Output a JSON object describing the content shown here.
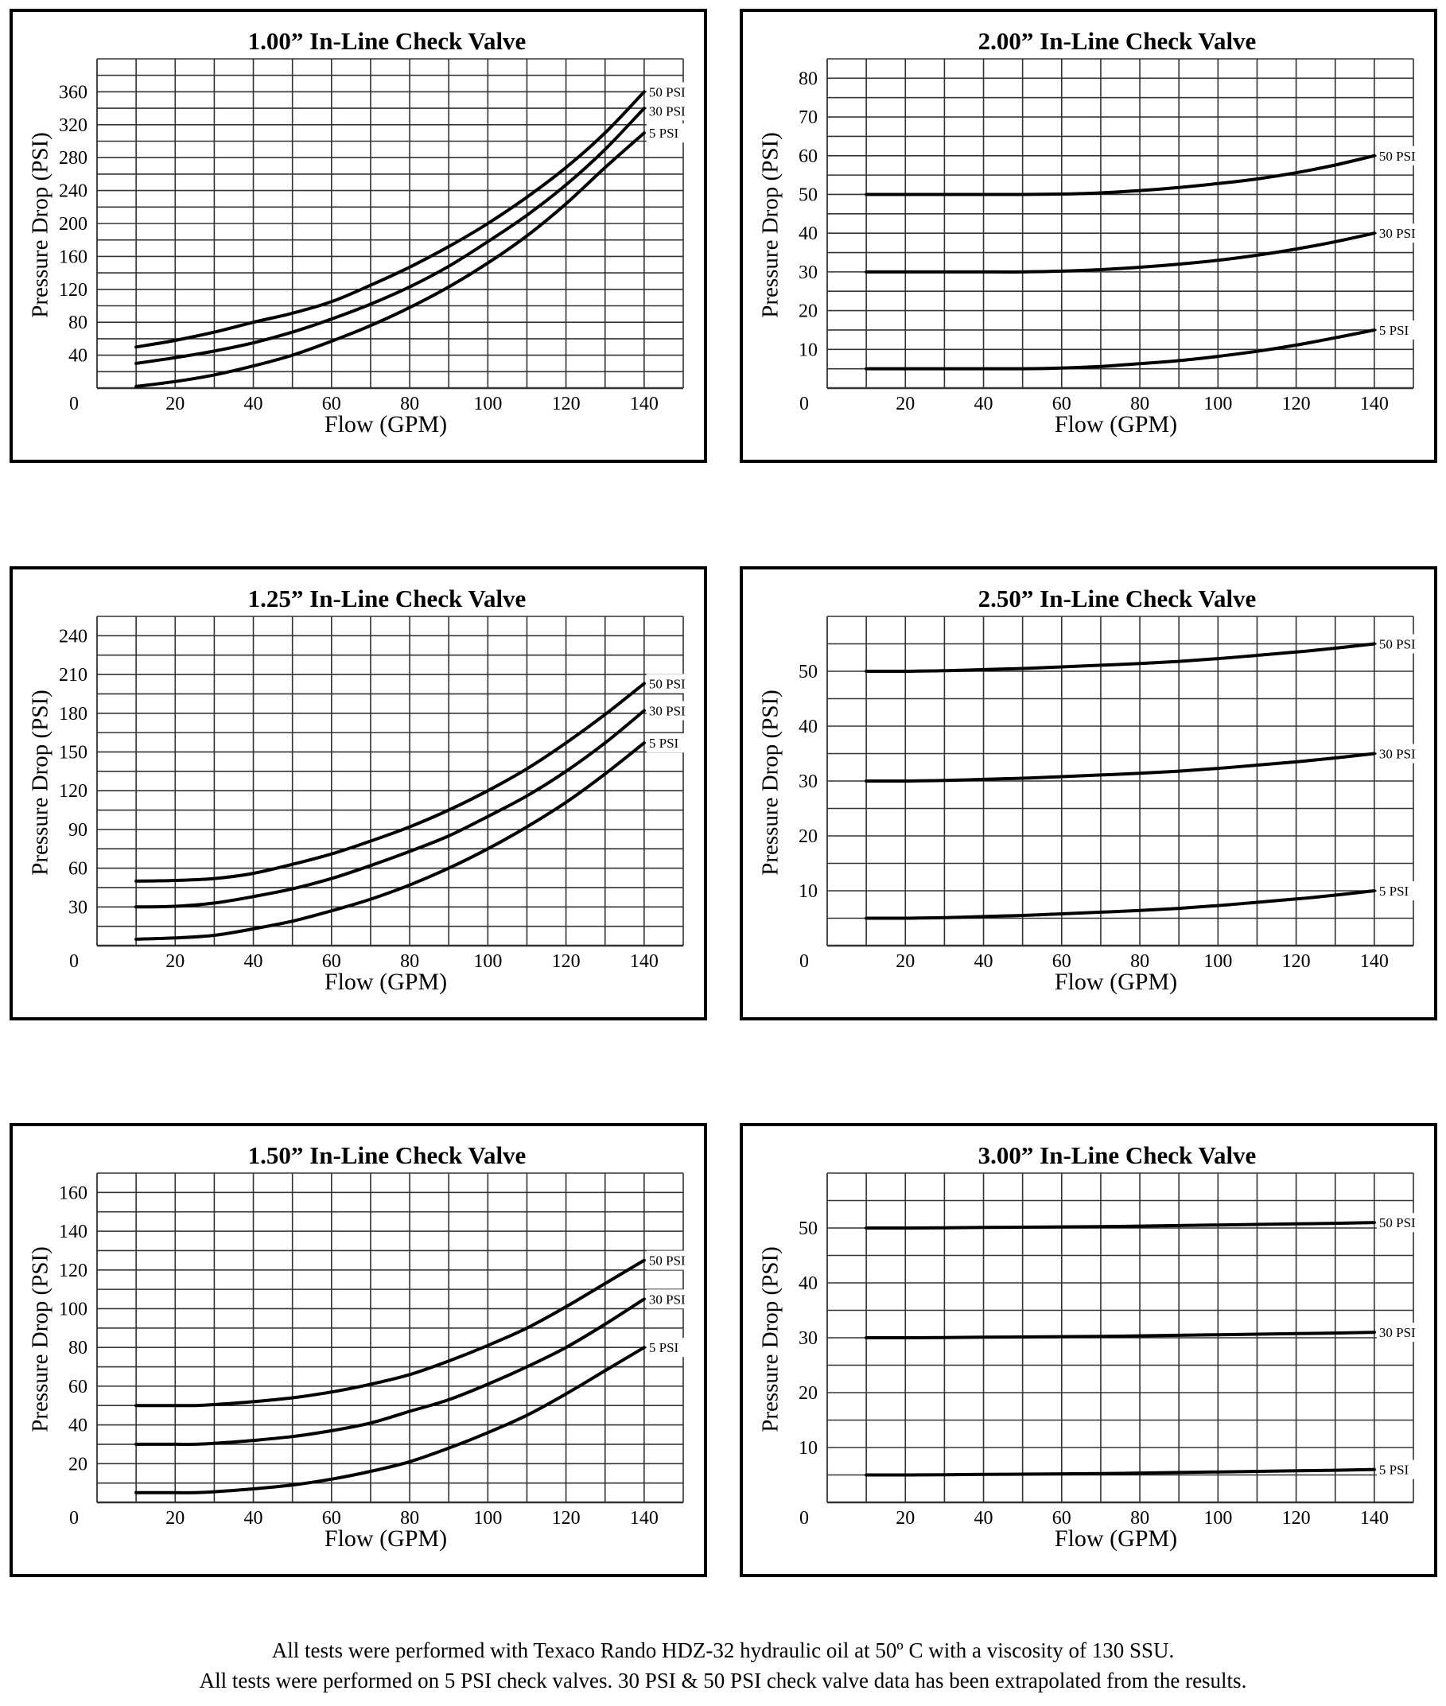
{
  "page": {
    "footer_lines": [
      "All tests were performed with Texaco Rando HDZ-32 hydraulic oil at 50º C with a viscosity of 130 SSU.",
      "All tests were performed on 5 PSI check valves. 30 PSI & 50 PSI check valve data has been extrapolated from the results."
    ],
    "colors": {
      "line": "#000000",
      "grid": "#333333",
      "frame": "#000000",
      "background": "#ffffff"
    }
  },
  "chart_data": [
    {
      "type": "line",
      "title": "1.00” In-Line Check Valve",
      "xlabel": "Flow (GPM)",
      "ylabel": "Pressure Drop (PSI)",
      "xlim": [
        0,
        150
      ],
      "ylim": [
        0,
        400
      ],
      "grid": true,
      "x_grid_step": 10,
      "y_grid_step": 20,
      "x_ticks": [
        0,
        20,
        40,
        60,
        80,
        100,
        120,
        140
      ],
      "x_tick_labels": [
        "0",
        "20",
        "40",
        "60",
        "80",
        "100",
        "120",
        "140"
      ],
      "y_ticks": [
        40,
        80,
        120,
        160,
        200,
        240,
        280,
        320,
        360
      ],
      "y_tick_labels": [
        "40",
        "80",
        "120",
        "160",
        "200",
        "240",
        "280",
        "320",
        "360"
      ],
      "legend": "right-end labels",
      "x": [
        10,
        20,
        30,
        40,
        50,
        60,
        70,
        80,
        90,
        100,
        110,
        120,
        130,
        140
      ],
      "series": [
        {
          "name": "50 PSI",
          "values": [
            50,
            58,
            68,
            80,
            91,
            105,
            125,
            147,
            172,
            200,
            232,
            268,
            310,
            360
          ]
        },
        {
          "name": "30 PSI",
          "values": [
            30,
            37,
            45,
            55,
            68,
            84,
            102,
            123,
            148,
            178,
            210,
            247,
            290,
            340
          ]
        },
        {
          "name": "5 PSI",
          "values": [
            2,
            8,
            16,
            27,
            40,
            57,
            76,
            98,
            123,
            152,
            185,
            224,
            268,
            310
          ]
        }
      ]
    },
    {
      "type": "line",
      "title": "2.00” In-Line Check Valve",
      "xlabel": "Flow (GPM)",
      "ylabel": "Pressure Drop (PSI)",
      "xlim": [
        0,
        150
      ],
      "ylim": [
        0,
        85
      ],
      "grid": true,
      "x_grid_step": 10,
      "y_grid_step": 5,
      "x_ticks": [
        0,
        20,
        40,
        60,
        80,
        100,
        120,
        140
      ],
      "x_tick_labels": [
        "0",
        "20",
        "40",
        "60",
        "80",
        "100",
        "120",
        "140"
      ],
      "y_ticks": [
        10,
        20,
        30,
        40,
        50,
        60,
        70,
        80
      ],
      "y_tick_labels": [
        "10",
        "20",
        "30",
        "40",
        "50",
        "60",
        "70",
        "80"
      ],
      "legend": "right-end labels",
      "x": [
        10,
        20,
        30,
        40,
        50,
        60,
        70,
        80,
        90,
        100,
        110,
        120,
        130,
        140
      ],
      "series": [
        {
          "name": "50 PSI",
          "values": [
            50,
            50,
            50,
            50,
            50,
            50.1,
            50.4,
            51,
            51.8,
            52.8,
            54,
            55.6,
            57.6,
            60
          ]
        },
        {
          "name": "30 PSI",
          "values": [
            30,
            30,
            30,
            30,
            30,
            30.2,
            30.6,
            31.2,
            32,
            33,
            34.3,
            35.9,
            37.8,
            40
          ]
        },
        {
          "name": "5 PSI",
          "values": [
            5,
            5,
            5,
            5,
            5,
            5.2,
            5.6,
            6.3,
            7.1,
            8.2,
            9.5,
            11.1,
            13,
            15
          ]
        }
      ]
    },
    {
      "type": "line",
      "title": "1.25” In-Line Check Valve",
      "xlabel": "Flow (GPM)",
      "ylabel": "Pressure Drop (PSI)",
      "xlim": [
        0,
        150
      ],
      "ylim": [
        0,
        255
      ],
      "grid": true,
      "x_grid_step": 10,
      "y_grid_step": 15,
      "x_ticks": [
        0,
        20,
        40,
        60,
        80,
        100,
        120,
        140
      ],
      "x_tick_labels": [
        "0",
        "20",
        "40",
        "60",
        "80",
        "100",
        "120",
        "140"
      ],
      "y_ticks": [
        30,
        60,
        90,
        120,
        150,
        180,
        210,
        240
      ],
      "y_tick_labels": [
        "30",
        "60",
        "90",
        "120",
        "150",
        "180",
        "210",
        "240"
      ],
      "legend": "right-end labels",
      "x": [
        10,
        20,
        30,
        40,
        50,
        60,
        70,
        80,
        90,
        100,
        110,
        120,
        130,
        140
      ],
      "series": [
        {
          "name": "50 PSI",
          "values": [
            50,
            50.5,
            52,
            56,
            63,
            71,
            81,
            92,
            105,
            120,
            137,
            157,
            179,
            203
          ]
        },
        {
          "name": "30 PSI",
          "values": [
            30,
            30.5,
            33,
            38,
            44,
            52,
            62,
            73,
            85,
            100,
            116,
            135,
            157,
            182
          ]
        },
        {
          "name": "5 PSI",
          "values": [
            5,
            6,
            8,
            13,
            19,
            27,
            36,
            47,
            60,
            75,
            92,
            111,
            133,
            157
          ]
        }
      ]
    },
    {
      "type": "line",
      "title": "2.50” In-Line Check Valve",
      "xlabel": "Flow (GPM)",
      "ylabel": "Pressure Drop (PSI)",
      "xlim": [
        0,
        150
      ],
      "ylim": [
        0,
        60
      ],
      "grid": true,
      "x_grid_step": 10,
      "y_grid_step": 5,
      "x_ticks": [
        0,
        20,
        40,
        60,
        80,
        100,
        120,
        140
      ],
      "x_tick_labels": [
        "0",
        "20",
        "40",
        "60",
        "80",
        "100",
        "120",
        "140"
      ],
      "y_ticks": [
        10,
        20,
        30,
        40,
        50
      ],
      "y_tick_labels": [
        "10",
        "20",
        "30",
        "40",
        "50"
      ],
      "legend": "right-end labels",
      "x": [
        10,
        20,
        30,
        40,
        50,
        60,
        70,
        80,
        90,
        100,
        110,
        120,
        130,
        140
      ],
      "series": [
        {
          "name": "50 PSI",
          "values": [
            50,
            50,
            50.1,
            50.3,
            50.5,
            50.8,
            51.1,
            51.4,
            51.8,
            52.3,
            52.9,
            53.5,
            54.2,
            55
          ]
        },
        {
          "name": "30 PSI",
          "values": [
            30,
            30,
            30.1,
            30.3,
            30.5,
            30.8,
            31.1,
            31.4,
            31.8,
            32.3,
            32.9,
            33.5,
            34.2,
            35
          ]
        },
        {
          "name": "5 PSI",
          "values": [
            5,
            5,
            5.1,
            5.3,
            5.5,
            5.8,
            6.1,
            6.4,
            6.8,
            7.3,
            7.9,
            8.5,
            9.2,
            10
          ]
        }
      ]
    },
    {
      "type": "line",
      "title": "1.50” In-Line Check Valve",
      "xlabel": "Flow (GPM)",
      "ylabel": "Pressure Drop (PSI)",
      "xlim": [
        0,
        150
      ],
      "ylim": [
        0,
        170
      ],
      "grid": true,
      "x_grid_step": 10,
      "y_grid_step": 10,
      "x_ticks": [
        0,
        20,
        40,
        60,
        80,
        100,
        120,
        140
      ],
      "x_tick_labels": [
        "0",
        "20",
        "40",
        "60",
        "80",
        "100",
        "120",
        "140"
      ],
      "y_ticks": [
        20,
        40,
        60,
        80,
        100,
        120,
        140,
        160
      ],
      "y_tick_labels": [
        "20",
        "40",
        "60",
        "80",
        "100",
        "120",
        "140",
        "160"
      ],
      "legend": "right-end labels",
      "x": [
        10,
        20,
        25,
        30,
        40,
        50,
        60,
        70,
        80,
        90,
        100,
        110,
        120,
        130,
        140
      ],
      "series": [
        {
          "name": "50 PSI",
          "values": [
            50,
            50,
            50,
            50.5,
            52,
            54,
            57,
            61,
            66,
            73,
            81,
            90,
            101,
            113,
            125
          ]
        },
        {
          "name": "30 PSI",
          "values": [
            30,
            30,
            30,
            30.5,
            32,
            34,
            37,
            41,
            47,
            53,
            61,
            70,
            80,
            92,
            105
          ]
        },
        {
          "name": "5 PSI",
          "values": [
            5,
            5,
            5,
            5.5,
            7,
            9,
            12,
            16,
            21,
            28,
            36,
            45,
            56,
            68,
            80
          ]
        }
      ]
    },
    {
      "type": "line",
      "title": "3.00” In-Line Check Valve",
      "xlabel": "Flow (GPM)",
      "ylabel": "Pressure Drop (PSI)",
      "xlim": [
        0,
        150
      ],
      "ylim": [
        0,
        60
      ],
      "grid": true,
      "x_grid_step": 10,
      "y_grid_step": 5,
      "x_ticks": [
        0,
        20,
        40,
        60,
        80,
        100,
        120,
        140
      ],
      "x_tick_labels": [
        "0",
        "20",
        "40",
        "60",
        "80",
        "100",
        "120",
        "140"
      ],
      "y_ticks": [
        10,
        20,
        30,
        40,
        50
      ],
      "y_tick_labels": [
        "10",
        "20",
        "30",
        "40",
        "50"
      ],
      "legend": "right-end labels",
      "x": [
        10,
        20,
        30,
        40,
        50,
        60,
        70,
        80,
        90,
        100,
        110,
        120,
        130,
        140
      ],
      "series": [
        {
          "name": "50 PSI",
          "values": [
            50,
            50,
            50.05,
            50.1,
            50.15,
            50.2,
            50.25,
            50.35,
            50.45,
            50.55,
            50.65,
            50.75,
            50.85,
            51
          ]
        },
        {
          "name": "30 PSI",
          "values": [
            30,
            30,
            30.05,
            30.1,
            30.15,
            30.2,
            30.25,
            30.35,
            30.45,
            30.55,
            30.65,
            30.75,
            30.85,
            31
          ]
        },
        {
          "name": "5 PSI",
          "values": [
            5,
            5,
            5.05,
            5.1,
            5.15,
            5.2,
            5.25,
            5.35,
            5.45,
            5.55,
            5.65,
            5.75,
            5.85,
            6
          ]
        }
      ]
    }
  ]
}
